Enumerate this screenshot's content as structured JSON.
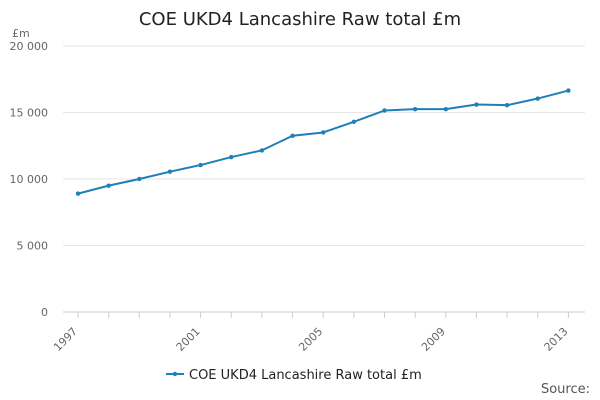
{
  "chart_data": {
    "type": "line",
    "title": "COE UKD4 Lancashire Raw total £m",
    "ylabel": "£m",
    "xlabel": "",
    "x": [
      1997,
      1998,
      1999,
      2000,
      2001,
      2002,
      2003,
      2004,
      2005,
      2006,
      2007,
      2008,
      2009,
      2010,
      2011,
      2012,
      2013
    ],
    "series": [
      {
        "name": "COE UKD4 Lancashire Raw total £m",
        "color": "#1f7fb8",
        "values": [
          8900,
          9500,
          10000,
          10550,
          11050,
          11650,
          12150,
          13250,
          13500,
          14300,
          15150,
          15250,
          15250,
          15600,
          15550,
          16050,
          16650
        ]
      }
    ],
    "ylim": [
      0,
      20000
    ],
    "yticks": [
      0,
      5000,
      10000,
      15000,
      20000
    ],
    "ytick_labels": [
      "0",
      "5 000",
      "10 000",
      "15 000",
      "20 000"
    ],
    "xticks": [
      1997,
      2001,
      2005,
      2009,
      2013
    ],
    "xtick_labels": [
      "1997",
      "2001",
      "2005",
      "2009",
      "2013"
    ],
    "grid": true,
    "legend_position": "bottom-center",
    "source_label": "Source:"
  }
}
